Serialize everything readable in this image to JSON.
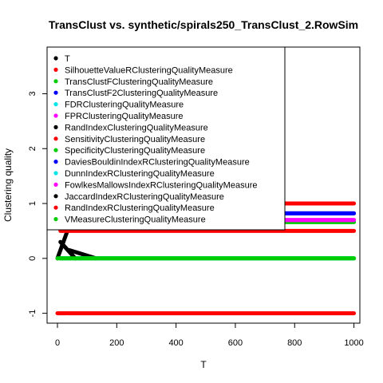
{
  "chart_data": {
    "type": "scatter",
    "title": "TransClust vs. synthetic/spirals250_TransClust_2.RowSim",
    "xlabel": "T",
    "ylabel": "Clustering quality",
    "xlim": [
      -35,
      1020
    ],
    "ylim": [
      -1.18,
      3.85
    ],
    "x_ticks": [
      0,
      200,
      400,
      600,
      800,
      1000
    ],
    "x_tick_labels": [
      "0",
      "200",
      "400",
      "600",
      "800",
      "1000"
    ],
    "y_ticks": [
      -1,
      0,
      1,
      2,
      3
    ],
    "y_tick_labels": [
      "-1",
      "0",
      "1",
      "2",
      "3"
    ],
    "grid": false,
    "legend_position": "top-left",
    "series": [
      {
        "name": "T",
        "color": "#000000",
        "segments": [
          {
            "x": [
              0,
              40
            ],
            "y": [
              0.0,
              0.6
            ]
          }
        ]
      },
      {
        "name": "SilhouetteValueRClusteringQualityMeasure",
        "color": "#ff0000",
        "segments": [
          {
            "x": [
              0,
              30
            ],
            "y": [
              -1,
              -1
            ]
          },
          {
            "x": [
              35,
              1000
            ],
            "y": [
              -1,
              -1
            ]
          }
        ]
      },
      {
        "name": "TransClustFClusteringQualityMeasure",
        "color": "#00cd00",
        "segments": [
          {
            "x": [
              10,
              1000
            ],
            "y": [
              0.66,
              0.66
            ]
          }
        ]
      },
      {
        "name": "TransClustF2ClusteringQualityMeasure",
        "color": "#0000ff",
        "segments": [
          {
            "x": [
              10,
              1000
            ],
            "y": [
              0.82,
              0.82
            ]
          }
        ]
      },
      {
        "name": "FDRClusteringQualityMeasure",
        "color": "#00e5e5",
        "segments": [
          {
            "x": [
              10,
              1000
            ],
            "y": [
              0.0,
              0.0
            ]
          }
        ]
      },
      {
        "name": "FPRClusteringQualityMeasure",
        "color": "#ff00ff",
        "segments": [
          {
            "x": [
              10,
              1000
            ],
            "y": [
              0.7,
              0.7
            ]
          }
        ]
      },
      {
        "name": "RandIndexClusteringQualityMeasure",
        "color": "#000000",
        "segments": [
          {
            "x": [
              40,
              130
            ],
            "y": [
              0.15,
              0.0
            ]
          }
        ]
      },
      {
        "name": "SensitivityClusteringQualityMeasure",
        "color": "#ff0000",
        "segments": [
          {
            "x": [
              10,
              1000
            ],
            "y": [
              0.5,
              0.5
            ]
          }
        ]
      },
      {
        "name": "SpecificityClusteringQualityMeasure",
        "color": "#00cd00",
        "segments": [
          {
            "x": [
              0,
              1000
            ],
            "y": [
              0.0,
              0.0
            ]
          }
        ]
      },
      {
        "name": "DaviesBouldinIndexRClusteringQualityMeasure",
        "color": "#0000ff",
        "segments": [
          {
            "x": [
              10,
              1000
            ],
            "y": [
              0.82,
              0.82
            ]
          }
        ]
      },
      {
        "name": "DunnIndexRClusteringQualityMeasure",
        "color": "#00e5e5",
        "segments": [
          {
            "x": [
              10,
              1000
            ],
            "y": [
              0.0,
              0.0
            ]
          }
        ]
      },
      {
        "name": "FowlkesMallowsIndexRClusteringQualityMeasure",
        "color": "#ff00ff",
        "segments": [
          {
            "x": [
              10,
              1000
            ],
            "y": [
              0.7,
              0.7
            ]
          }
        ]
      },
      {
        "name": "JaccardIndexRClusteringQualityMeasure",
        "color": "#000000",
        "segments": [
          {
            "x": [
              10,
              60
            ],
            "y": [
              0.3,
              0.0
            ]
          }
        ]
      },
      {
        "name": "RandIndexRClusteringQualityMeasure",
        "color": "#ff0000",
        "segments": [
          {
            "x": [
              10,
              1000
            ],
            "y": [
              1.0,
              1.0
            ]
          }
        ]
      },
      {
        "name": "VMeasureClusteringQualityMeasure",
        "color": "#00cd00",
        "segments": [
          {
            "x": [
              10,
              1000
            ],
            "y": [
              0.0,
              0.0
            ]
          }
        ]
      }
    ]
  }
}
